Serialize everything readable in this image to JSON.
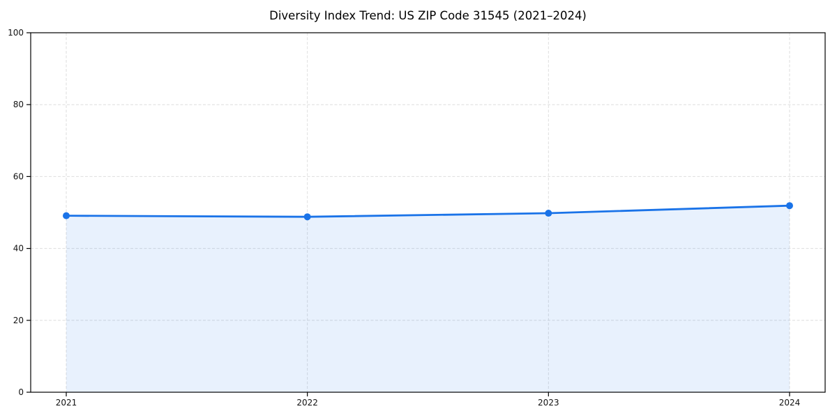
{
  "title": "Diversity Index Trend: US ZIP Code 31545 (2021–2024)",
  "chart_data": {
    "type": "line",
    "title": "Diversity Index Trend: US ZIP Code 31545 (2021–2024)",
    "categories": [
      "2021",
      "2022",
      "2023",
      "2024"
    ],
    "series": [
      {
        "name": "Diversity Index",
        "values": [
          49.1,
          48.8,
          49.8,
          51.9
        ]
      }
    ],
    "xlabel": "",
    "ylabel": "",
    "ylim": [
      0,
      100
    ],
    "yticks": [
      0,
      20,
      40,
      60,
      80,
      100
    ],
    "grid": true,
    "grid_style": "dashed",
    "legend_position": "none",
    "area_fill": true,
    "marker": "circle",
    "colors": {
      "line": "#1a73e8",
      "marker": "#1a73e8",
      "area_fill": "rgba(26,115,232,0.10)",
      "grid": "#dedede",
      "spine": "#000000",
      "tick_text": "#111111",
      "background": "#ffffff"
    }
  }
}
